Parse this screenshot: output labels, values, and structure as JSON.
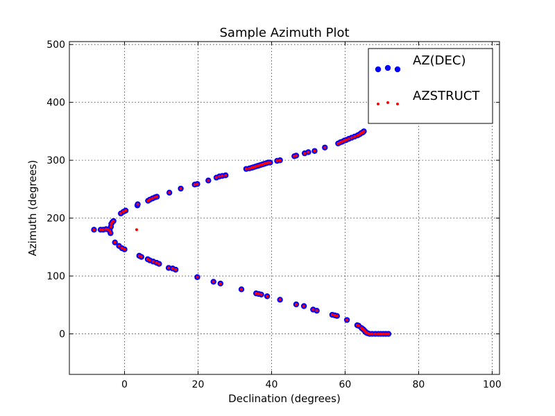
{
  "chart_data": {
    "type": "scatter",
    "title": "Sample Azimuth Plot",
    "xlabel": "Declination (degrees)",
    "ylabel": "Azimuth (degrees)",
    "xlim": [
      -15,
      102
    ],
    "ylim": [
      -70,
      505
    ],
    "xticks": [
      0,
      20,
      40,
      60,
      80,
      100
    ],
    "xtick_labels": [
      "0",
      "20",
      "40",
      "60",
      "80",
      "100"
    ],
    "yticks": [
      0,
      100,
      200,
      300,
      400,
      500
    ],
    "ytick_labels": [
      "0",
      "100",
      "200",
      "300",
      "400",
      "500"
    ],
    "grid": true,
    "legend_position": "top-right",
    "series": [
      {
        "name": "AZ(DEC)",
        "color": "#0000ff",
        "marker": "large-circle",
        "points": [
          [
            -8.3,
            180
          ],
          [
            -6.5,
            180
          ],
          [
            -5.8,
            180
          ],
          [
            -5.0,
            181
          ],
          [
            -4.4,
            180
          ],
          [
            -4.0,
            178
          ],
          [
            -3.8,
            174
          ],
          [
            -3.7,
            185
          ],
          [
            -3.6,
            190
          ],
          [
            -3.3,
            193
          ],
          [
            -3.0,
            195
          ],
          [
            -2.6,
            158
          ],
          [
            -1.5,
            152
          ],
          [
            -0.7,
            148
          ],
          [
            0.0,
            146
          ],
          [
            -1.0,
            208
          ],
          [
            -0.3,
            211
          ],
          [
            0.3,
            213
          ],
          [
            3.5,
            222
          ],
          [
            3.6,
            224
          ],
          [
            6.4,
            230
          ],
          [
            6.9,
            232
          ],
          [
            7.6,
            234
          ],
          [
            8.3,
            236
          ],
          [
            8.8,
            237
          ],
          [
            12.2,
            244
          ],
          [
            15.3,
            251
          ],
          [
            19.1,
            258
          ],
          [
            19.8,
            259
          ],
          [
            22.8,
            265
          ],
          [
            25.0,
            270
          ],
          [
            25.8,
            272
          ],
          [
            26.6,
            273
          ],
          [
            27.5,
            274
          ],
          [
            33.1,
            285
          ],
          [
            34.0,
            286
          ],
          [
            34.6,
            287
          ],
          [
            35.1,
            288
          ],
          [
            35.6,
            289
          ],
          [
            36.1,
            290
          ],
          [
            36.6,
            291
          ],
          [
            37.1,
            292
          ],
          [
            37.6,
            293
          ],
          [
            38.1,
            294
          ],
          [
            38.6,
            295
          ],
          [
            39.1,
            296
          ],
          [
            39.6,
            296
          ],
          [
            41.5,
            299
          ],
          [
            42.3,
            300
          ],
          [
            46.2,
            307
          ],
          [
            46.7,
            308
          ],
          [
            49.0,
            312
          ],
          [
            50.0,
            314
          ],
          [
            51.7,
            316
          ],
          [
            54.5,
            322
          ],
          [
            58.1,
            329
          ],
          [
            58.7,
            331
          ],
          [
            59.2,
            332
          ],
          [
            59.8,
            334
          ],
          [
            60.3,
            335
          ],
          [
            61.0,
            337
          ],
          [
            61.8,
            339
          ],
          [
            62.6,
            341
          ],
          [
            63.4,
            343
          ],
          [
            64.0,
            345
          ],
          [
            64.4,
            347
          ],
          [
            64.8,
            348
          ],
          [
            65.1,
            350
          ],
          [
            4.0,
            135
          ],
          [
            4.6,
            133
          ],
          [
            6.3,
            129
          ],
          [
            6.9,
            127
          ],
          [
            7.8,
            125
          ],
          [
            8.7,
            123
          ],
          [
            9.4,
            121
          ],
          [
            12.0,
            114
          ],
          [
            13.1,
            113
          ],
          [
            13.9,
            111
          ],
          [
            19.8,
            98
          ],
          [
            24.2,
            90
          ],
          [
            26.1,
            87
          ],
          [
            31.8,
            77
          ],
          [
            35.8,
            70
          ],
          [
            36.5,
            69
          ],
          [
            37.2,
            68
          ],
          [
            38.8,
            65
          ],
          [
            42.3,
            59
          ],
          [
            46.7,
            51
          ],
          [
            48.8,
            48
          ],
          [
            51.3,
            42
          ],
          [
            52.3,
            40
          ],
          [
            56.5,
            33
          ],
          [
            57.2,
            32
          ],
          [
            57.8,
            31
          ],
          [
            60.5,
            24
          ],
          [
            63.3,
            15
          ],
          [
            63.7,
            14
          ],
          [
            64.5,
            10
          ],
          [
            64.9,
            8
          ],
          [
            65.2,
            6
          ],
          [
            65.5,
            4
          ],
          [
            65.8,
            2
          ],
          [
            66.2,
            1
          ],
          [
            66.7,
            0
          ],
          [
            67.4,
            0
          ],
          [
            68.2,
            0
          ],
          [
            69.0,
            0
          ],
          [
            69.7,
            0
          ],
          [
            70.4,
            0
          ],
          [
            71.1,
            0
          ],
          [
            71.8,
            0
          ]
        ]
      },
      {
        "name": "AZSTRUCT",
        "color": "#ff0000",
        "marker": "small-dot",
        "points": [
          [
            3.3,
            180
          ],
          [
            -8.3,
            180
          ],
          [
            -6.5,
            180
          ],
          [
            -5.8,
            180
          ],
          [
            -5.0,
            181
          ],
          [
            -4.4,
            180
          ],
          [
            -4.0,
            178
          ],
          [
            -3.8,
            174
          ],
          [
            -3.7,
            185
          ],
          [
            -3.6,
            190
          ],
          [
            -3.3,
            193
          ],
          [
            -3.0,
            195
          ],
          [
            -2.6,
            158
          ],
          [
            -1.5,
            152
          ],
          [
            -0.7,
            148
          ],
          [
            0.0,
            146
          ],
          [
            -1.0,
            208
          ],
          [
            -0.3,
            211
          ],
          [
            0.3,
            213
          ],
          [
            3.6,
            224
          ],
          [
            6.4,
            230
          ],
          [
            6.9,
            232
          ],
          [
            7.6,
            234
          ],
          [
            8.3,
            236
          ],
          [
            8.8,
            237
          ],
          [
            12.2,
            244
          ],
          [
            15.3,
            251
          ],
          [
            19.1,
            258
          ],
          [
            19.8,
            259
          ],
          [
            22.8,
            265
          ],
          [
            25.0,
            270
          ],
          [
            25.8,
            272
          ],
          [
            26.6,
            273
          ],
          [
            27.5,
            274
          ],
          [
            33.1,
            285
          ],
          [
            34.0,
            286
          ],
          [
            34.6,
            287
          ],
          [
            35.1,
            288
          ],
          [
            35.6,
            289
          ],
          [
            36.1,
            290
          ],
          [
            36.6,
            291
          ],
          [
            37.1,
            292
          ],
          [
            37.6,
            293
          ],
          [
            38.1,
            294
          ],
          [
            38.6,
            295
          ],
          [
            39.1,
            296
          ],
          [
            39.6,
            296
          ],
          [
            41.5,
            299
          ],
          [
            42.3,
            300
          ],
          [
            46.2,
            307
          ],
          [
            46.7,
            308
          ],
          [
            49.0,
            312
          ],
          [
            50.0,
            314
          ],
          [
            51.7,
            316
          ],
          [
            54.5,
            322
          ],
          [
            58.1,
            329
          ],
          [
            58.7,
            331
          ],
          [
            59.2,
            332
          ],
          [
            59.8,
            334
          ],
          [
            60.3,
            335
          ],
          [
            61.0,
            337
          ],
          [
            61.8,
            339
          ],
          [
            62.6,
            341
          ],
          [
            63.4,
            343
          ],
          [
            64.0,
            345
          ],
          [
            64.4,
            347
          ],
          [
            64.8,
            348
          ],
          [
            65.1,
            350
          ],
          [
            4.0,
            135
          ],
          [
            4.6,
            133
          ],
          [
            6.3,
            129
          ],
          [
            6.9,
            127
          ],
          [
            7.8,
            125
          ],
          [
            8.7,
            123
          ],
          [
            9.4,
            121
          ],
          [
            12.0,
            114
          ],
          [
            13.1,
            113
          ],
          [
            13.9,
            111
          ],
          [
            19.8,
            98
          ],
          [
            24.2,
            90
          ],
          [
            26.1,
            87
          ],
          [
            31.8,
            77
          ],
          [
            35.8,
            70
          ],
          [
            36.5,
            69
          ],
          [
            37.2,
            68
          ],
          [
            38.8,
            65
          ],
          [
            42.3,
            59
          ],
          [
            46.7,
            51
          ],
          [
            48.8,
            48
          ],
          [
            51.3,
            42
          ],
          [
            52.3,
            40
          ],
          [
            56.5,
            33
          ],
          [
            57.2,
            32
          ],
          [
            57.8,
            31
          ],
          [
            60.5,
            24
          ],
          [
            63.3,
            15
          ],
          [
            63.7,
            14
          ],
          [
            64.5,
            10
          ],
          [
            64.9,
            8
          ],
          [
            65.2,
            6
          ],
          [
            65.5,
            4
          ],
          [
            65.8,
            2
          ],
          [
            66.2,
            1
          ],
          [
            66.7,
            0
          ],
          [
            67.4,
            0
          ],
          [
            68.2,
            0
          ],
          [
            69.0,
            0
          ],
          [
            69.7,
            0
          ],
          [
            70.4,
            0
          ],
          [
            71.1,
            0
          ],
          [
            71.8,
            0
          ]
        ]
      }
    ]
  }
}
